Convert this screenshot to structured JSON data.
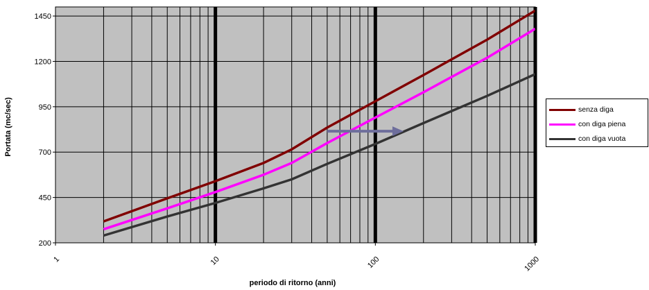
{
  "colors": {
    "plot_background": "#c0c0c0",
    "grid": "#000000",
    "decade_line": "#000000",
    "arrow": "#6e6e9c"
  },
  "chart_data": {
    "type": "line",
    "title": "",
    "xlabel": "periodo di ritorno (anni)",
    "ylabel": "Portata (mc/sec)",
    "x_scale": "log",
    "xlim": [
      1,
      1000
    ],
    "ylim": [
      200,
      1500
    ],
    "x_ticks": [
      "1",
      "10",
      "100",
      "1000"
    ],
    "y_ticks": [
      "200",
      "450",
      "700",
      "950",
      "1200",
      "1450"
    ],
    "grid": true,
    "legend_position": "right",
    "series": [
      {
        "name": "senza diga",
        "color": "#800000",
        "x": [
          2,
          5,
          10,
          20,
          30,
          50,
          100,
          200,
          500,
          1000
        ],
        "y": [
          318,
          445,
          540,
          640,
          715,
          835,
          980,
          1125,
          1320,
          1480
        ]
      },
      {
        "name": "con diga piena",
        "color": "#ff00ff",
        "x": [
          2,
          5,
          10,
          20,
          30,
          50,
          100,
          200,
          500,
          1000
        ],
        "y": [
          275,
          390,
          480,
          575,
          640,
          750,
          890,
          1030,
          1220,
          1380
        ]
      },
      {
        "name": "con diga vuota",
        "color": "#333333",
        "x": [
          2,
          5,
          10,
          20,
          30,
          50,
          100,
          200,
          500,
          1000
        ],
        "y": [
          240,
          345,
          420,
          500,
          550,
          635,
          745,
          860,
          1010,
          1130
        ]
      }
    ],
    "annotations": [
      {
        "type": "arrow",
        "x_start": 50,
        "x_end": 150,
        "y": 815
      }
    ]
  }
}
